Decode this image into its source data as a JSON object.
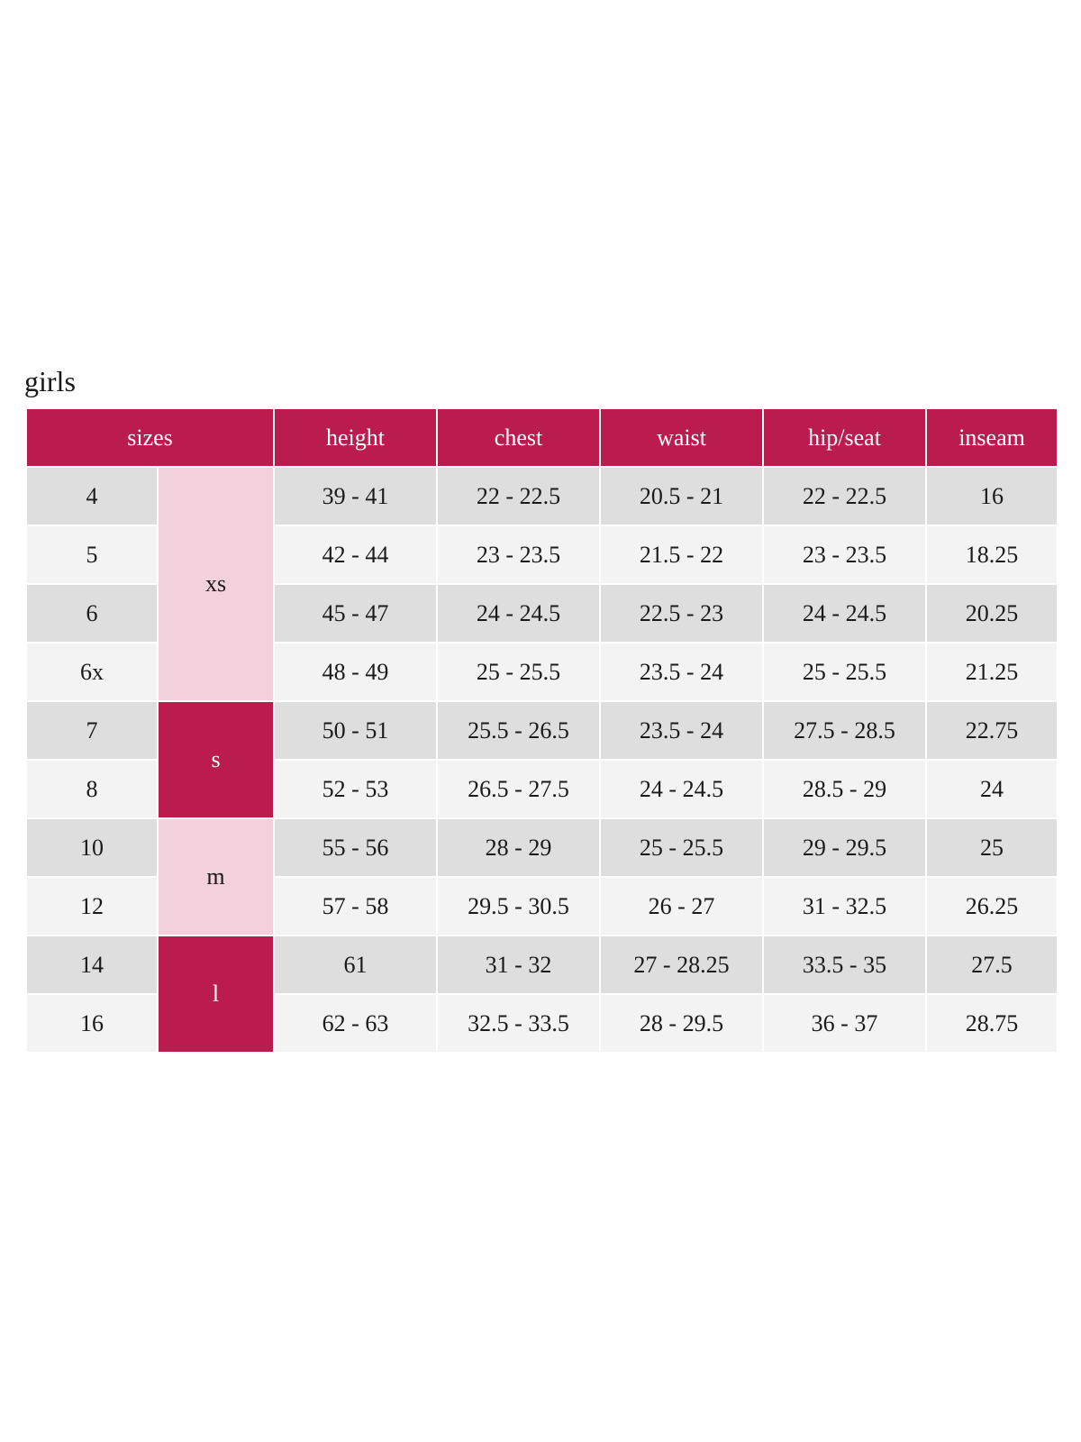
{
  "title": "girls",
  "colors": {
    "header": "#BA1C4E",
    "alpha_light": "#F2D0DC",
    "alpha_dark": "#BA1C4E",
    "row_dark": "#DEDEDE",
    "row_light": "#F3F3F3"
  },
  "headers": [
    "sizes",
    "height",
    "chest",
    "waist",
    "hip/seat",
    "inseam"
  ],
  "alpha_groups": [
    {
      "label": "xs",
      "rows": 4,
      "style": "light"
    },
    {
      "label": "s",
      "rows": 2,
      "style": "dark"
    },
    {
      "label": "m",
      "rows": 2,
      "style": "light"
    },
    {
      "label": "l",
      "rows": 2,
      "style": "dark"
    }
  ],
  "rows": [
    [
      "4",
      "39 - 41",
      "22 - 22.5",
      "20.5 - 21",
      "22 - 22.5",
      "16"
    ],
    [
      "5",
      "42 - 44",
      "23 - 23.5",
      "21.5 - 22",
      "23 - 23.5",
      "18.25"
    ],
    [
      "6",
      "45 - 47",
      "24 - 24.5",
      "22.5 - 23",
      "24 - 24.5",
      "20.25"
    ],
    [
      "6x",
      "48 - 49",
      "25 - 25.5",
      "23.5 - 24",
      "25 - 25.5",
      "21.25"
    ],
    [
      "7",
      "50 - 51",
      "25.5 - 26.5",
      "23.5 - 24",
      "27.5 - 28.5",
      "22.75"
    ],
    [
      "8",
      "52 - 53",
      "26.5 - 27.5",
      "24 - 24.5",
      "28.5 - 29",
      "24"
    ],
    [
      "10",
      "55 - 56",
      "28 - 29",
      "25 - 25.5",
      "29 - 29.5",
      "25"
    ],
    [
      "12",
      "57 - 58",
      "29.5 - 30.5",
      "26 - 27",
      "31 - 32.5",
      "26.25"
    ],
    [
      "14",
      "61",
      "31 - 32",
      "27 - 28.25",
      "33.5 - 35",
      "27.5"
    ],
    [
      "16",
      "62 - 63",
      "32.5 - 33.5",
      "28 - 29.5",
      "36 - 37",
      "28.75"
    ]
  ]
}
